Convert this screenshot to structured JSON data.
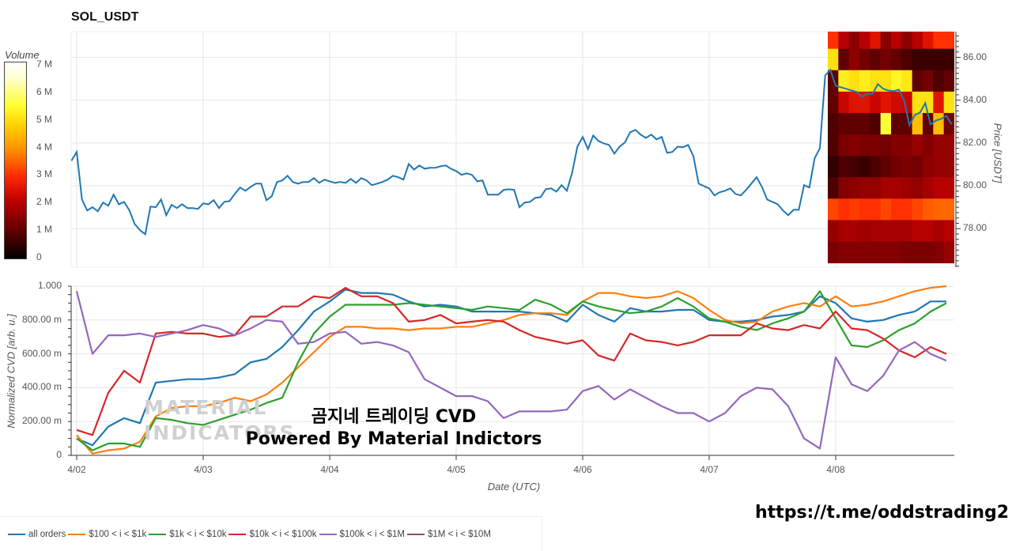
{
  "header": {
    "title": "SOL_USDT"
  },
  "overlay": {
    "line1": "곰지네 트레이딩 CVD",
    "line2": "Powered By Material Indictors",
    "watermark": "MATERIAL INDICATORS",
    "link": "https://t.me/oddstrading2"
  },
  "colors": {
    "all_orders": "#1f77b4",
    "r100_1k": "#ff7f0e",
    "r1k_10k": "#2ca02c",
    "r10k_100k": "#d62728",
    "r100k_1M": "#9467bd",
    "r1M_10M": "#8c564b"
  },
  "legend": [
    {
      "label": "all orders",
      "color": "#1f77b4"
    },
    {
      "label": "$100 < i < $1k",
      "color": "#ff7f0e"
    },
    {
      "label": "$1k < i < $10k",
      "color": "#2ca02c"
    },
    {
      "label": "$10k < i < $100k",
      "color": "#d62728"
    },
    {
      "label": "$100k < i < $1M",
      "color": "#9467bd"
    },
    {
      "label": "$1M < i < $10M",
      "color": "#8c564b"
    }
  ],
  "chart_data": [
    {
      "type": "line",
      "title": "SOL_USDT",
      "ylabel": "Price [USDT]",
      "ylim": [
        76.2,
        87.2
      ],
      "yticks": [
        86,
        84,
        82,
        80,
        78
      ],
      "ytick_labels": [
        "86.00",
        "84.00",
        "82.00",
        "80.00",
        "78.00"
      ],
      "x_unit": "hours since 4/02 00:00 UTC",
      "price": {
        "start_hour": -1,
        "step_hours": 1,
        "values": [
          81.17,
          81.58,
          79.36,
          78.85,
          79.0,
          78.81,
          79.22,
          79.07,
          79.59,
          79.14,
          79.25,
          78.85,
          78.22,
          77.93,
          77.74,
          79.03,
          79.0,
          79.36,
          78.63,
          79.11,
          78.96,
          79.14,
          78.96,
          78.96,
          78.92,
          79.18,
          79.14,
          79.33,
          78.96,
          79.25,
          79.29,
          79.62,
          79.92,
          79.77,
          79.95,
          80.1,
          80.1,
          79.33,
          79.51,
          80.18,
          80.25,
          80.47,
          80.18,
          80.1,
          80.18,
          80.18,
          80.36,
          80.14,
          80.29,
          80.21,
          80.14,
          80.18,
          80.14,
          80.32,
          80.14,
          80.36,
          80.25,
          80.03,
          80.1,
          80.18,
          80.29,
          80.47,
          80.4,
          80.29,
          81.02,
          80.76,
          80.95,
          80.8,
          80.84,
          80.84,
          80.91,
          80.95,
          80.8,
          80.69,
          80.51,
          80.58,
          80.51,
          80.21,
          80.25,
          79.59,
          79.59,
          79.59,
          79.81,
          79.84,
          79.81,
          79.0,
          79.22,
          79.25,
          79.44,
          79.47,
          79.84,
          79.88,
          79.73,
          80.03,
          79.77,
          80.62,
          81.83,
          82.28,
          81.72,
          82.35,
          82.09,
          81.98,
          81.91,
          81.5,
          81.83,
          82.02,
          82.5,
          82.61,
          82.39,
          82.24,
          82.39,
          82.17,
          82.28,
          81.54,
          81.58,
          81.83,
          81.8,
          81.91,
          81.39,
          80.1,
          79.99,
          79.88,
          79.55,
          79.7,
          79.77,
          79.88,
          79.62,
          79.55,
          79.81,
          80.1,
          80.4,
          79.95,
          79.36,
          79.25,
          79.14,
          78.85,
          78.63,
          78.88,
          78.88,
          80.03,
          79.92,
          81.28,
          81.76,
          85.15,
          85.41,
          84.67,
          84.6,
          84.53,
          84.45,
          84.38,
          84.16,
          84.3,
          84.3,
          84.75,
          84.53,
          84.45,
          84.42,
          84.49,
          83.97,
          82.83,
          83.31,
          83.42,
          83.86,
          82.87,
          83.05,
          83.12,
          83.27,
          82.87
        ]
      },
      "heatmap": {
        "type": "heatmap",
        "colorbar_title": "Volume",
        "colorbar_ticks": [
          "7 M",
          "6 M",
          "5 M",
          "4 M",
          "3 M",
          "2 M",
          "1 M",
          "0"
        ],
        "zlim": [
          0,
          7
        ],
        "z_unit": "M",
        "start_hour": 142.5,
        "step_hours": 2,
        "price_bins": [
          86.9,
          85.9,
          84.9,
          83.9,
          82.9,
          81.9,
          80.9,
          79.9,
          78.9,
          77.9,
          76.9
        ],
        "values": [
          [
            3,
            2,
            1.5,
            2,
            2.5,
            1.5,
            2,
            1.5,
            2,
            2.5,
            3,
            3
          ],
          [
            5,
            1,
            1.5,
            1.2,
            1,
            1.2,
            1,
            0.8,
            0.6,
            0.6,
            0.6,
            0.6
          ],
          [
            1,
            5.2,
            5,
            5.2,
            5,
            5,
            5.3,
            5.1,
            1,
            1.2,
            0.8,
            1
          ],
          [
            1,
            2.2,
            2.5,
            2.5,
            2.2,
            2.5,
            2.3,
            2.2,
            5,
            5,
            2.5,
            5
          ],
          [
            0.8,
            1,
            1,
            1,
            0.8,
            5.5,
            1,
            1,
            4.5,
            1,
            4.5,
            1.2
          ],
          [
            0.8,
            1.3,
            1.4,
            1.3,
            1.3,
            1.2,
            1.4,
            1.4,
            1.6,
            1.4,
            1.6,
            1.6
          ],
          [
            0.5,
            0.8,
            0.7,
            0.6,
            0.8,
            1.0,
            1.2,
            1.3,
            1.2,
            1.5,
            1.6,
            1.6
          ],
          [
            0.8,
            1.4,
            1.5,
            1.6,
            1.6,
            1.8,
            1.8,
            1.7,
            1.6,
            1.8,
            2,
            2
          ],
          [
            3.2,
            3,
            3.1,
            3,
            3,
            3.2,
            3,
            3,
            3.2,
            3.4,
            3.5,
            3.5
          ],
          [
            1.6,
            1.8,
            1.8,
            1.7,
            1.8,
            1.8,
            1.8,
            1.8,
            2,
            2,
            1.8,
            2
          ],
          [
            1.3,
            1.4,
            1.4,
            1.4,
            1.4,
            1.4,
            1.4,
            1.3,
            1.3,
            1.3,
            1.4,
            1.6
          ]
        ]
      }
    },
    {
      "type": "line",
      "title": "",
      "xlabel": "Date (UTC)",
      "ylabel": "Normalized CVD [arb. u.]",
      "ylim": [
        0,
        1
      ],
      "yticks": [
        1,
        0.8,
        0.6,
        0.4,
        0.2,
        0
      ],
      "ytick_labels": [
        "1.000",
        "800.00 m",
        "600.00 m",
        "400.00 m",
        "200.00 m",
        "0"
      ],
      "xticks": [
        0,
        24,
        48,
        72,
        96,
        120,
        144
      ],
      "xtick_labels": [
        "4/02",
        "4/03",
        "4/04",
        "4/05",
        "4/06",
        "4/07",
        "4/08"
      ],
      "x_unit": "hours since 4/02 00:00 UTC",
      "start_hour": 0,
      "step_hours": 3,
      "series": [
        {
          "name": "all orders",
          "color": "#1f77b4",
          "values": [
            0.1,
            0.06,
            0.17,
            0.22,
            0.19,
            0.43,
            0.44,
            0.45,
            0.45,
            0.46,
            0.48,
            0.55,
            0.57,
            0.64,
            0.74,
            0.85,
            0.91,
            0.98,
            0.96,
            0.96,
            0.95,
            0.91,
            0.88,
            0.89,
            0.88,
            0.85,
            0.85,
            0.85,
            0.85,
            0.84,
            0.83,
            0.79,
            0.89,
            0.83,
            0.79,
            0.87,
            0.85,
            0.85,
            0.86,
            0.86,
            0.8,
            0.79,
            0.79,
            0.8,
            0.82,
            0.83,
            0.85,
            0.94,
            0.9,
            0.81,
            0.79,
            0.8,
            0.83,
            0.85,
            0.91,
            0.91
          ]
        },
        {
          "name": "$100 < i < $1k",
          "color": "#ff7f0e",
          "values": [
            0.12,
            0.01,
            0.03,
            0.04,
            0.08,
            0.23,
            0.28,
            0.29,
            0.29,
            0.31,
            0.34,
            0.32,
            0.36,
            0.43,
            0.52,
            0.61,
            0.7,
            0.76,
            0.76,
            0.75,
            0.75,
            0.74,
            0.75,
            0.75,
            0.76,
            0.76,
            0.78,
            0.8,
            0.83,
            0.84,
            0.84,
            0.83,
            0.91,
            0.96,
            0.96,
            0.94,
            0.93,
            0.94,
            0.97,
            0.93,
            0.86,
            0.8,
            0.78,
            0.79,
            0.85,
            0.88,
            0.9,
            0.88,
            0.94,
            0.88,
            0.89,
            0.91,
            0.94,
            0.97,
            0.99,
            1.0
          ]
        },
        {
          "name": "$1k < i < $10k",
          "color": "#2ca02c",
          "values": [
            0.1,
            0.03,
            0.07,
            0.07,
            0.05,
            0.22,
            0.21,
            0.19,
            0.18,
            0.21,
            0.24,
            0.27,
            0.31,
            0.34,
            0.55,
            0.72,
            0.82,
            0.89,
            0.89,
            0.89,
            0.89,
            0.9,
            0.89,
            0.88,
            0.87,
            0.86,
            0.88,
            0.87,
            0.86,
            0.92,
            0.89,
            0.84,
            0.91,
            0.88,
            0.86,
            0.84,
            0.85,
            0.88,
            0.93,
            0.88,
            0.81,
            0.79,
            0.76,
            0.74,
            0.78,
            0.81,
            0.85,
            0.97,
            0.81,
            0.65,
            0.64,
            0.68,
            0.74,
            0.78,
            0.85,
            0.9
          ]
        },
        {
          "name": "$10k < i < $100k",
          "color": "#d62728",
          "values": [
            0.15,
            0.12,
            0.37,
            0.5,
            0.43,
            0.72,
            0.73,
            0.72,
            0.72,
            0.7,
            0.71,
            0.82,
            0.82,
            0.88,
            0.88,
            0.94,
            0.93,
            0.99,
            0.94,
            0.94,
            0.9,
            0.79,
            0.8,
            0.83,
            0.78,
            0.79,
            0.8,
            0.79,
            0.74,
            0.7,
            0.68,
            0.66,
            0.68,
            0.59,
            0.56,
            0.72,
            0.68,
            0.67,
            0.65,
            0.67,
            0.71,
            0.71,
            0.71,
            0.78,
            0.75,
            0.74,
            0.77,
            0.75,
            0.85,
            0.75,
            0.74,
            0.69,
            0.62,
            0.58,
            0.64,
            0.6
          ]
        },
        {
          "name": "$100k < i < $1M",
          "color": "#9467bd",
          "values": [
            0.97,
            0.6,
            0.71,
            0.71,
            0.72,
            0.7,
            0.72,
            0.74,
            0.77,
            0.75,
            0.71,
            0.75,
            0.8,
            0.79,
            0.66,
            0.67,
            0.72,
            0.73,
            0.66,
            0.67,
            0.65,
            0.61,
            0.45,
            0.4,
            0.35,
            0.35,
            0.32,
            0.22,
            0.26,
            0.26,
            0.26,
            0.27,
            0.38,
            0.41,
            0.33,
            0.39,
            0.34,
            0.29,
            0.25,
            0.25,
            0.2,
            0.25,
            0.35,
            0.4,
            0.39,
            0.29,
            0.1,
            0.04,
            0.58,
            0.42,
            0.38,
            0.47,
            0.62,
            0.67,
            0.6,
            0.56
          ]
        }
      ]
    }
  ]
}
